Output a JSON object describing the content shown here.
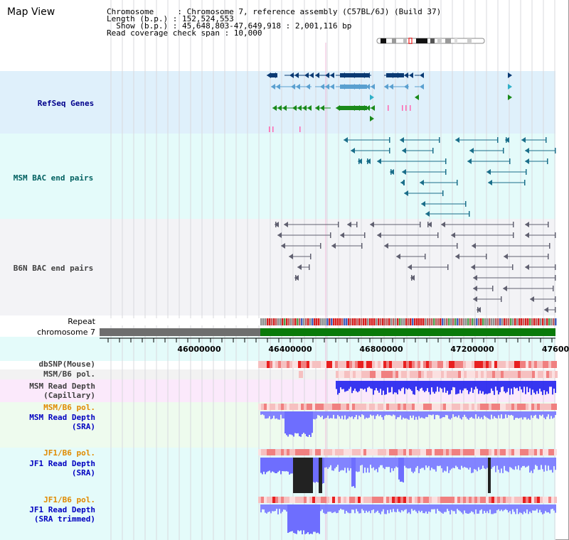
{
  "header": {
    "title": "Map View",
    "info_lines": [
      "Chromosome     : Chromosome 7, reference assembly (C57BL/6J) (Build 37)",
      "Length (b.p.) : 152,524,553",
      "  Show (b.p.) : 45,648,803-47,649,918 : 2,001,116 bp",
      "Read coverage check span : 10,000"
    ]
  },
  "tracks": {
    "refseq": "RefSeq Genes",
    "msm_bac": "MSM BAC end pairs",
    "b6n_bac": "B6N BAC end pairs",
    "repeat": "Repeat",
    "chromosome": "chromosome 7",
    "dbsnp": "dbSNP(Mouse)",
    "msm_b6_pol": "MSM/B6 pol.",
    "msm_depth_cap": "MSM Read Depth\n(Capillary)",
    "msm_b6_pol_2": "MSM/B6 pol.",
    "msm_depth_sra": "MSM Read Depth\n(SRA)",
    "jf1_b6_pol": "JF1/B6 pol.",
    "jf1_depth_sra": "JF1 Read Depth\n(SRA)",
    "jf1_b6_pol_2": "JF1/B6 pol.",
    "jf1_depth_trim": "JF1 Read Depth\n(SRA trimmed)"
  },
  "axis": {
    "ticks": [
      "46000000",
      "46400000",
      "46800000",
      "47200000",
      "47600"
    ]
  },
  "colors": {
    "refseq_band": "#dff0fb",
    "msm_band": "#e4fbfa",
    "b6n_band": "#f3f3f6",
    "gene_navy": "#0a3a73",
    "gene_light": "#5aa0d0",
    "gene_teal": "#30b0c8",
    "gene_green": "#1a8a1a",
    "msm_pair": "#1a6e8a",
    "b6n_pair": "#606070",
    "depth_blue": "#2222ee",
    "depth_light": "#7777ff",
    "depth_dark": "#222222",
    "pol_pink": "#f6c0c0",
    "pol_red": "#e82020",
    "chrom_gray": "#6e6e6e",
    "chrom_green": "#0a7a0a",
    "label_navy": "#00008b",
    "label_teal": "#006060",
    "label_gray": "#404040",
    "label_orange": "#e08a00",
    "label_blue": "#0000c0"
  }
}
